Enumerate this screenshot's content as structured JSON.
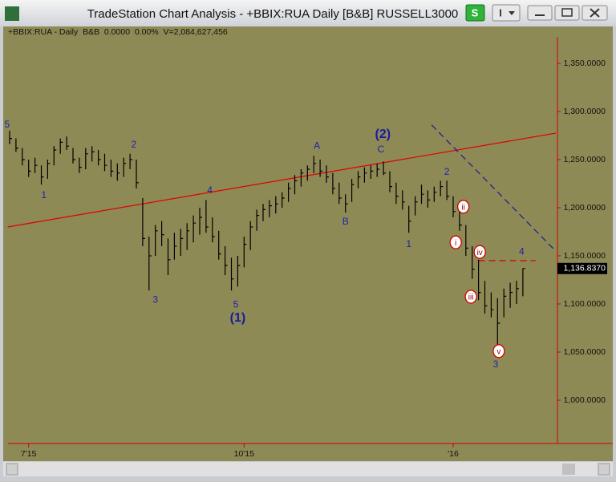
{
  "window": {
    "title": "TradeStation Chart Analysis - +BBIX:RUA Daily [B&B] RUSSELL3000",
    "s_button": "S",
    "i_button": "I"
  },
  "chart_data": {
    "type": "ohlc",
    "header": "+BBIX:RUA - Daily  B&B  0.0000  0.00%  V=2,084,627,456",
    "color": "#000000",
    "categories": [
      null,
      null,
      null,
      "7'15",
      null,
      null,
      null,
      null,
      null,
      null,
      null,
      null,
      null,
      null,
      null,
      null,
      null,
      null,
      null,
      null,
      null,
      null,
      null,
      null,
      null,
      null,
      null,
      null,
      null,
      null,
      null,
      null,
      null,
      null,
      null,
      null,
      null,
      "10'15",
      null,
      null,
      null,
      null,
      null,
      null,
      null,
      null,
      null,
      null,
      null,
      null,
      null,
      null,
      null,
      null,
      null,
      null,
      null,
      null,
      null,
      null,
      null,
      null,
      null,
      null,
      null,
      null,
      null,
      null,
      null,
      null,
      "'16",
      null,
      null,
      null,
      null,
      null,
      null,
      null,
      null,
      null,
      null,
      null
    ],
    "high": [
      1280,
      1272,
      1262,
      1250,
      1252,
      1244,
      1250,
      1264,
      1272,
      1274,
      1262,
      1252,
      1262,
      1264,
      1260,
      1256,
      1250,
      1246,
      1252,
      1256,
      1250,
      1210,
      1170,
      1182,
      1186,
      1168,
      1174,
      1178,
      1184,
      1192,
      1200,
      1208,
      1190,
      1176,
      1160,
      1148,
      1150,
      1170,
      1186,
      1198,
      1204,
      1208,
      1212,
      1216,
      1226,
      1234,
      1240,
      1244,
      1254,
      1250,
      1244,
      1236,
      1226,
      1214,
      1230,
      1238,
      1242,
      1244,
      1246,
      1248,
      1238,
      1226,
      1218,
      1202,
      1212,
      1224,
      1218,
      1222,
      1228,
      1228,
      1212,
      1200,
      1182,
      1160,
      1146,
      1124,
      1112,
      1106,
      1116,
      1122,
      1124,
      1137
    ],
    "low": [
      1266,
      1258,
      1244,
      1232,
      1236,
      1224,
      1230,
      1244,
      1256,
      1260,
      1246,
      1236,
      1240,
      1248,
      1244,
      1238,
      1232,
      1228,
      1232,
      1240,
      1220,
      1160,
      1114,
      1150,
      1160,
      1130,
      1146,
      1150,
      1156,
      1164,
      1172,
      1174,
      1164,
      1146,
      1130,
      1114,
      1118,
      1138,
      1156,
      1176,
      1186,
      1190,
      1194,
      1200,
      1206,
      1214,
      1222,
      1228,
      1236,
      1232,
      1226,
      1214,
      1204,
      1195,
      1206,
      1220,
      1226,
      1230,
      1232,
      1234,
      1216,
      1204,
      1198,
      1174,
      1192,
      1204,
      1200,
      1206,
      1212,
      1208,
      1190,
      1176,
      1150,
      1126,
      1104,
      1090,
      1086,
      1057,
      1086,
      1096,
      1100,
      1108
    ],
    "close": [
      1272,
      1262,
      1250,
      1238,
      1244,
      1232,
      1246,
      1260,
      1268,
      1264,
      1250,
      1242,
      1256,
      1258,
      1250,
      1244,
      1238,
      1236,
      1246,
      1250,
      1226,
      1168,
      1150,
      1176,
      1172,
      1146,
      1160,
      1168,
      1176,
      1184,
      1190,
      1180,
      1170,
      1152,
      1140,
      1126,
      1140,
      1162,
      1180,
      1192,
      1198,
      1202,
      1204,
      1210,
      1220,
      1228,
      1236,
      1240,
      1246,
      1238,
      1232,
      1220,
      1210,
      1204,
      1224,
      1232,
      1236,
      1238,
      1240,
      1236,
      1222,
      1212,
      1206,
      1186,
      1206,
      1214,
      1208,
      1216,
      1222,
      1212,
      1196,
      1182,
      1158,
      1136,
      1112,
      1098,
      1094,
      1080,
      1108,
      1112,
      1116,
      1136.837
    ],
    "ylim": [
      955,
      1377.5
    ],
    "yticks": [
      {
        "value": 1000,
        "label": "1,000.0000"
      },
      {
        "value": 1050,
        "label": "1,050.0000"
      },
      {
        "value": 1100,
        "label": "1,100.0000"
      },
      {
        "value": 1150,
        "label": "1,150.0000"
      },
      {
        "value": 1200,
        "label": "1,200.0000"
      },
      {
        "value": 1250,
        "label": "1,250.0000"
      },
      {
        "value": 1300,
        "label": "1,300.0000"
      },
      {
        "value": 1350,
        "label": "1,350.0000"
      }
    ],
    "last_price": {
      "value": 1136.837,
      "label": "1,136.8370"
    },
    "trendlines": [
      {
        "from": [
          -0.3,
          1180
        ],
        "to": [
          86.2,
          1277.5
        ],
        "color": "#e00000",
        "dashed": false
      },
      {
        "from": [
          66.6,
          1286
        ],
        "to": [
          85.8,
          1157.5
        ],
        "color": "#1a1a9a",
        "dashed": true
      },
      {
        "from": [
          74,
          1145
        ],
        "to": [
          83,
          1145
        ],
        "color": "#d00000",
        "dashed": true
      }
    ],
    "wave_labels": [
      {
        "text": "5",
        "at": -0.4,
        "price": 1286
      },
      {
        "text": "1",
        "at": 5.4,
        "price": 1212.5
      },
      {
        "text": "2",
        "at": 19.6,
        "price": 1265
      },
      {
        "text": "3",
        "at": 23,
        "price": 1104
      },
      {
        "text": "4",
        "at": 31.6,
        "price": 1217.5
      },
      {
        "text": "5",
        "at": 35.7,
        "price": 1099
      },
      {
        "text": "A",
        "at": 48.5,
        "price": 1264
      },
      {
        "text": "B",
        "at": 53,
        "price": 1185
      },
      {
        "text": "C",
        "at": 58.6,
        "price": 1260
      },
      {
        "text": "1",
        "at": 63,
        "price": 1162
      },
      {
        "text": "2",
        "at": 69,
        "price": 1237
      },
      {
        "text": "3",
        "at": 76.7,
        "price": 1037
      },
      {
        "text": "4",
        "at": 80.8,
        "price": 1154
      }
    ],
    "degree_labels": [
      {
        "text": "(1)",
        "at": 36,
        "price": 1085
      },
      {
        "text": "(2)",
        "at": 58.9,
        "price": 1276
      }
    ],
    "subwave_labels": [
      {
        "text": "i",
        "at": 70.4,
        "price": 1164
      },
      {
        "text": "ii",
        "at": 71.6,
        "price": 1201
      },
      {
        "text": "iii",
        "at": 72.8,
        "price": 1107.5
      },
      {
        "text": "iv",
        "at": 74.2,
        "price": 1154
      },
      {
        "text": "v",
        "at": 77.2,
        "price": 1051
      }
    ]
  }
}
